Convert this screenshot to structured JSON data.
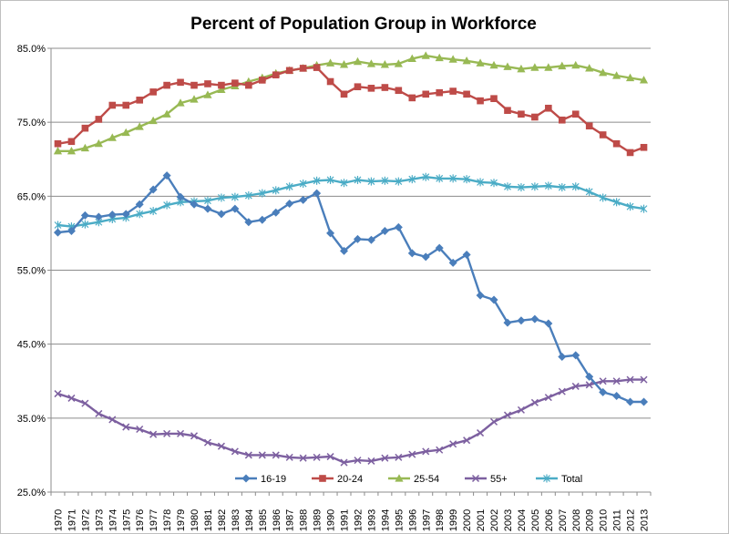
{
  "chart_data": {
    "type": "line",
    "title": "Percent of Population Group in Workforce",
    "xlabel": "",
    "ylabel": "",
    "ylim": [
      25,
      85
    ],
    "yticks": [
      {
        "value": 85,
        "label": "85.0%"
      },
      {
        "value": 75,
        "label": "75.0%"
      },
      {
        "value": 65,
        "label": "65.0%"
      },
      {
        "value": 55,
        "label": "55.0%"
      },
      {
        "value": 45,
        "label": "45.0%"
      },
      {
        "value": 35,
        "label": "35.0%"
      },
      {
        "value": 25,
        "label": "25.0%"
      }
    ],
    "grid": "horizontal",
    "legend": "bottom",
    "categories": [
      "1970",
      "1971",
      "1972",
      "1973",
      "1974",
      "1975",
      "1976",
      "1977",
      "1978",
      "1979",
      "1980",
      "1981",
      "1982",
      "1983",
      "1984",
      "1985",
      "1986",
      "1987",
      "1988",
      "1989",
      "1990",
      "1991",
      "1992",
      "1993",
      "1994",
      "1995",
      "1996",
      "1997",
      "1998",
      "1999",
      "2000",
      "2001",
      "2002",
      "2003",
      "2004",
      "2005",
      "2006",
      "2007",
      "2008",
      "2009",
      "2010",
      "2011",
      "2012",
      "2013"
    ],
    "series": [
      {
        "name": "16-19",
        "color": "#4a7ebb",
        "marker": "diamond",
        "values": [
          60.1,
          60.3,
          62.4,
          62.2,
          62.5,
          62.6,
          63.9,
          65.9,
          67.8,
          64.9,
          63.9,
          63.3,
          62.6,
          63.3,
          61.5,
          61.8,
          62.8,
          64.0,
          64.5,
          65.4,
          60.0,
          57.6,
          59.2,
          59.1,
          60.3,
          60.8,
          57.3,
          56.8,
          58.0,
          56.0,
          57.1,
          51.6,
          51.0,
          47.9,
          48.2,
          48.4,
          47.8,
          43.3,
          43.5,
          40.6,
          38.5,
          38.0,
          37.2,
          37.2
        ]
      },
      {
        "name": "20-24",
        "color": "#be4b48",
        "marker": "square",
        "values": [
          72.1,
          72.4,
          74.2,
          75.4,
          77.3,
          77.3,
          78.0,
          79.1,
          80.0,
          80.4,
          80.0,
          80.2,
          80.0,
          80.3,
          80.0,
          80.7,
          81.4,
          82.0,
          82.3,
          82.4,
          80.5,
          78.8,
          79.8,
          79.6,
          79.7,
          79.3,
          78.3,
          78.8,
          79.0,
          79.2,
          78.8,
          77.9,
          78.2,
          76.6,
          76.1,
          75.7,
          76.9,
          75.3,
          76.1,
          74.5,
          73.3,
          72.1,
          70.9,
          71.6
        ]
      },
      {
        "name": "25-54",
        "color": "#98b954",
        "marker": "triangle",
        "values": [
          71.1,
          71.1,
          71.5,
          72.1,
          72.9,
          73.6,
          74.4,
          75.2,
          76.1,
          77.6,
          78.1,
          78.7,
          79.4,
          79.9,
          80.5,
          81.0,
          81.6,
          82.0,
          82.3,
          82.7,
          83.0,
          82.8,
          83.2,
          82.9,
          82.8,
          82.9,
          83.6,
          84.0,
          83.7,
          83.5,
          83.3,
          83.0,
          82.7,
          82.5,
          82.2,
          82.4,
          82.4,
          82.6,
          82.7,
          82.3,
          81.7,
          81.3,
          81.0,
          80.7
        ]
      },
      {
        "name": "55+",
        "color": "#7d60a0",
        "marker": "x",
        "values": [
          38.3,
          37.7,
          37.0,
          35.6,
          34.8,
          33.8,
          33.5,
          32.8,
          32.9,
          32.9,
          32.6,
          31.7,
          31.2,
          30.5,
          30.0,
          30.0,
          30.0,
          29.7,
          29.6,
          29.7,
          29.8,
          29.0,
          29.3,
          29.2,
          29.6,
          29.7,
          30.1,
          30.5,
          30.7,
          31.5,
          32.0,
          33.0,
          34.5,
          35.4,
          36.1,
          37.1,
          37.8,
          38.6,
          39.3,
          39.5,
          40.0,
          40.0,
          40.2,
          40.2
        ]
      },
      {
        "name": "Total",
        "color": "#4bacc6",
        "marker": "asterisk",
        "values": [
          61.1,
          60.9,
          61.2,
          61.5,
          61.9,
          62.1,
          62.6,
          63.0,
          63.8,
          64.2,
          64.3,
          64.4,
          64.8,
          64.9,
          65.1,
          65.4,
          65.8,
          66.3,
          66.7,
          67.1,
          67.2,
          66.8,
          67.2,
          67.0,
          67.1,
          67.0,
          67.3,
          67.6,
          67.4,
          67.4,
          67.3,
          66.9,
          66.8,
          66.3,
          66.2,
          66.3,
          66.4,
          66.2,
          66.3,
          65.6,
          64.8,
          64.2,
          63.6,
          63.3
        ]
      }
    ]
  }
}
